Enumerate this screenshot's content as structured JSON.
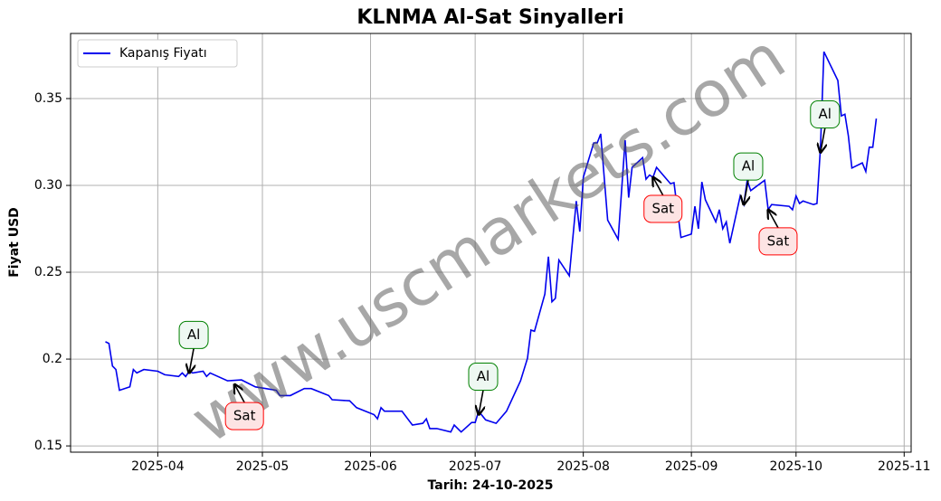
{
  "chart_data": {
    "type": "line",
    "title": "KLNMA Al-Sat Sinyalleri",
    "xlabel": "Tarih: 24-10-2025",
    "ylabel": "Fiyat USD",
    "watermark": "www.uscmarkets.com",
    "x": [
      "2025-03-17",
      "2025-03-18",
      "2025-03-19",
      "2025-03-20",
      "2025-03-21",
      "2025-03-24",
      "2025-03-25",
      "2025-03-26",
      "2025-03-28",
      "2025-04-01",
      "2025-04-03",
      "2025-04-07",
      "2025-04-08",
      "2025-04-09",
      "2025-04-10",
      "2025-04-11",
      "2025-04-14",
      "2025-04-15",
      "2025-04-16",
      "2025-04-21",
      "2025-04-25",
      "2025-04-29",
      "2025-05-02",
      "2025-05-05",
      "2025-05-06",
      "2025-05-09",
      "2025-05-13",
      "2025-05-15",
      "2025-05-20",
      "2025-05-21",
      "2025-05-26",
      "2025-05-28",
      "2025-06-02",
      "2025-06-03",
      "2025-06-04",
      "2025-06-05",
      "2025-06-10",
      "2025-06-13",
      "2025-06-16",
      "2025-06-17",
      "2025-06-18",
      "2025-06-20",
      "2025-06-24",
      "2025-06-25",
      "2025-06-27",
      "2025-06-30",
      "2025-07-01",
      "2025-07-02",
      "2025-07-04",
      "2025-07-07",
      "2025-07-09",
      "2025-07-10",
      "2025-07-14",
      "2025-07-16",
      "2025-07-17",
      "2025-07-18",
      "2025-07-21",
      "2025-07-22",
      "2025-07-23",
      "2025-07-24",
      "2025-07-25",
      "2025-07-28",
      "2025-07-30",
      "2025-07-31",
      "2025-08-01",
      "2025-08-04",
      "2025-08-05",
      "2025-08-06",
      "2025-08-08",
      "2025-08-11",
      "2025-08-13",
      "2025-08-14",
      "2025-08-15",
      "2025-08-18",
      "2025-08-19",
      "2025-08-20",
      "2025-08-21",
      "2025-08-22",
      "2025-08-26",
      "2025-08-27",
      "2025-08-29",
      "2025-09-01",
      "2025-09-02",
      "2025-09-03",
      "2025-09-04",
      "2025-09-05",
      "2025-09-08",
      "2025-09-09",
      "2025-09-10",
      "2025-09-11",
      "2025-09-12",
      "2025-09-15",
      "2025-09-16",
      "2025-09-17",
      "2025-09-18",
      "2025-09-22",
      "2025-09-23",
      "2025-09-24",
      "2025-09-29",
      "2025-09-30",
      "2025-10-01",
      "2025-10-02",
      "2025-10-03",
      "2025-10-06",
      "2025-10-07",
      "2025-10-08",
      "2025-10-09",
      "2025-10-13",
      "2025-10-14",
      "2025-10-15",
      "2025-10-16",
      "2025-10-17",
      "2025-10-20",
      "2025-10-21",
      "2025-10-22",
      "2025-10-23",
      "2025-10-24"
    ],
    "series": [
      {
        "name": "Kapanış Fiyatı",
        "color": "#0000ee",
        "values": [
          0.21,
          0.209,
          0.196,
          0.194,
          0.182,
          0.184,
          0.194,
          0.192,
          0.194,
          0.193,
          0.191,
          0.19,
          0.192,
          0.19,
          0.193,
          0.192,
          0.193,
          0.19,
          0.192,
          0.1875,
          0.188,
          0.184,
          0.183,
          0.182,
          0.179,
          0.179,
          0.183,
          0.183,
          0.179,
          0.1766,
          0.176,
          0.172,
          0.168,
          0.1656,
          0.172,
          0.17,
          0.17,
          0.162,
          0.163,
          0.1656,
          0.16,
          0.16,
          0.158,
          0.162,
          0.158,
          0.1635,
          0.1635,
          0.17,
          0.165,
          0.163,
          0.1677,
          0.17,
          0.1875,
          0.2005,
          0.2167,
          0.216,
          0.2375,
          0.259,
          0.233,
          0.235,
          0.257,
          0.248,
          0.291,
          0.2734,
          0.3047,
          0.3245,
          0.3245,
          0.3297,
          0.28,
          0.269,
          0.326,
          0.293,
          0.3104,
          0.316,
          0.3036,
          0.306,
          0.3047,
          0.3104,
          0.301,
          0.3016,
          0.27,
          0.272,
          0.288,
          0.275,
          0.302,
          0.2917,
          0.279,
          0.286,
          0.275,
          0.279,
          0.2667,
          0.294,
          0.289,
          0.303,
          0.297,
          0.303,
          0.286,
          0.289,
          0.288,
          0.286,
          0.294,
          0.2896,
          0.291,
          0.289,
          0.2896,
          0.322,
          0.377,
          0.3604,
          0.34,
          0.341,
          0.3286,
          0.31,
          0.313,
          0.308,
          0.322,
          0.322,
          0.3385
        ]
      }
    ],
    "annotations": [
      {
        "text": "Al",
        "x": "2025-04-10",
        "y": 0.192,
        "color": "green"
      },
      {
        "text": "Sat",
        "x": "2025-04-23",
        "y": 0.1854,
        "color": "red"
      },
      {
        "text": "Al",
        "x": "2025-07-02",
        "y": 0.168,
        "color": "green"
      },
      {
        "text": "Sat",
        "x": "2025-08-21",
        "y": 0.3047,
        "color": "red"
      },
      {
        "text": "Al",
        "x": "2025-09-16",
        "y": 0.289,
        "color": "green"
      },
      {
        "text": "Sat",
        "x": "2025-09-23",
        "y": 0.286,
        "color": "red"
      },
      {
        "text": "Al",
        "x": "2025-10-08",
        "y": 0.319,
        "color": "green"
      }
    ],
    "xlim": [
      "2025-03-07",
      "2025-11-03"
    ],
    "xticks": [
      {
        "value": "2025-04-01",
        "label": "2025-04"
      },
      {
        "value": "2025-05-01",
        "label": "2025-05"
      },
      {
        "value": "2025-06-01",
        "label": "2025-06"
      },
      {
        "value": "2025-07-01",
        "label": "2025-07"
      },
      {
        "value": "2025-08-01",
        "label": "2025-08"
      },
      {
        "value": "2025-09-01",
        "label": "2025-09"
      },
      {
        "value": "2025-10-01",
        "label": "2025-10"
      },
      {
        "value": "2025-11-01",
        "label": "2025-11"
      }
    ],
    "ylim": [
      0.1464,
      0.3875
    ],
    "yticks": [
      0.15,
      0.2,
      {
        "value": 0.25,
        "label": "0.25"
      },
      {
        "value": 0.3,
        "label": "0.30"
      },
      0.35
    ],
    "grid": true,
    "legend": "upper left"
  }
}
